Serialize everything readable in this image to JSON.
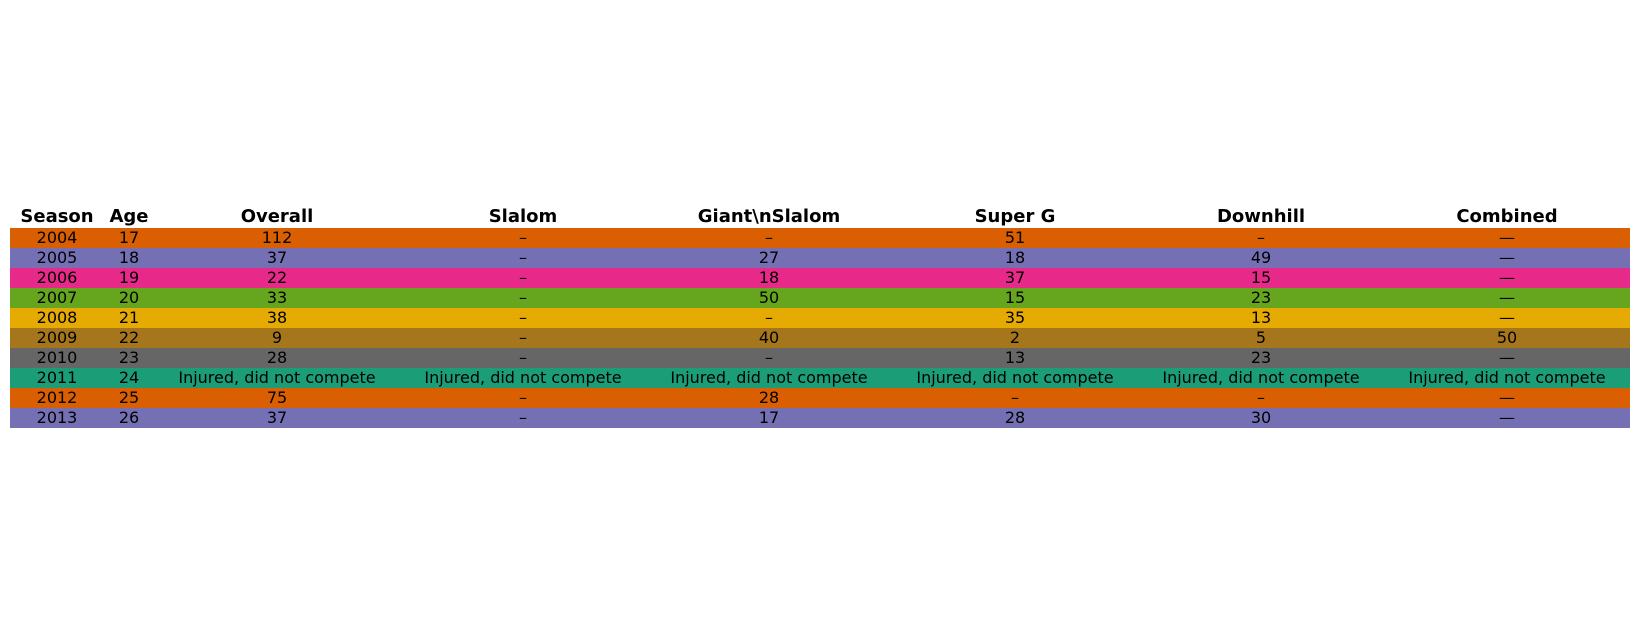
{
  "chart_data": {
    "type": "table",
    "columns": [
      "Season",
      "Age",
      "Overall",
      "Slalom",
      "Giant\\nSlalom",
      "Super G",
      "Downhill",
      "Combined"
    ],
    "rows": [
      {
        "cells": [
          "2004",
          "17",
          "112",
          "–",
          "–",
          "51",
          "–",
          "—"
        ],
        "color": "#d95f02"
      },
      {
        "cells": [
          "2005",
          "18",
          "37",
          "–",
          "27",
          "18",
          "49",
          "—"
        ],
        "color": "#7570b3"
      },
      {
        "cells": [
          "2006",
          "19",
          "22",
          "–",
          "18",
          "37",
          "15",
          "—"
        ],
        "color": "#e7298a"
      },
      {
        "cells": [
          "2007",
          "20",
          "33",
          "–",
          "50",
          "15",
          "23",
          "—"
        ],
        "color": "#66a61e"
      },
      {
        "cells": [
          "2008",
          "21",
          "38",
          "–",
          "–",
          "35",
          "13",
          "—"
        ],
        "color": "#e6ab02"
      },
      {
        "cells": [
          "2009",
          "22",
          "9",
          "–",
          "40",
          "2",
          "5",
          "50"
        ],
        "color": "#a6761d"
      },
      {
        "cells": [
          "2010",
          "23",
          "28",
          "–",
          "–",
          "13",
          "23",
          "—"
        ],
        "color": "#666666"
      },
      {
        "cells": [
          "2011",
          "24",
          "Injured, did not compete",
          "Injured, did not compete",
          "Injured, did not compete",
          "Injured, did not compete",
          "Injured, did not compete",
          "Injured, did not compete"
        ],
        "color": "#1b9e77"
      },
      {
        "cells": [
          "2012",
          "25",
          "75",
          "–",
          "28",
          "–",
          "–",
          "—"
        ],
        "color": "#d95f02"
      },
      {
        "cells": [
          "2013",
          "26",
          "37",
          "–",
          "17",
          "28",
          "30",
          "—"
        ],
        "color": "#7570b3"
      }
    ]
  }
}
